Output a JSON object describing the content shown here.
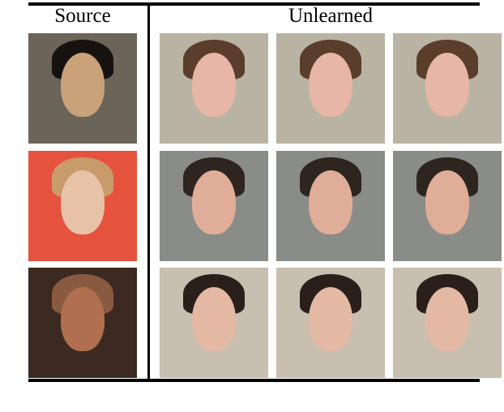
{
  "headers": {
    "source": "Source",
    "unlearned": "Unlearned"
  },
  "rows": [
    {
      "source": {
        "bg": "#6b6458",
        "skin": "#c9a27a",
        "hair": "#151210"
      },
      "unlearned_bg": "#b9b3a3",
      "skin": "#e7b6a6",
      "hair": "#5a3d2a"
    },
    {
      "source": {
        "bg": "#e5533e",
        "skin": "#e8c2a8",
        "hair": "#c99a6a"
      },
      "unlearned_bg": "#8a8c88",
      "skin": "#e0ad98",
      "hair": "#2e2520"
    },
    {
      "source": {
        "bg": "#3c2a22",
        "skin": "#b07050",
        "hair": "#8a5a40"
      },
      "unlearned_bg": "#c8bfb0",
      "skin": "#e4b9a4",
      "hair": "#2a1f1a"
    }
  ]
}
